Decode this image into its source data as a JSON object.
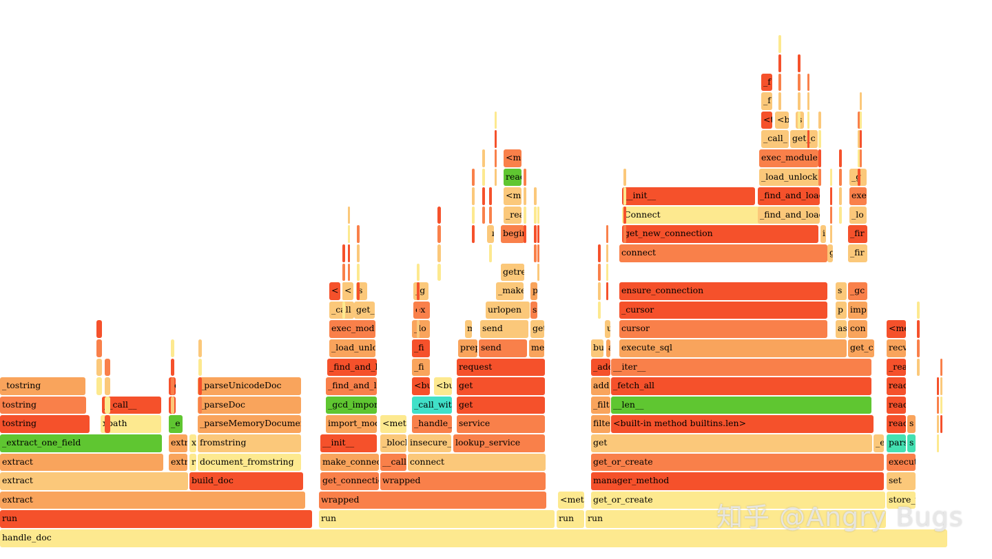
{
  "colors": {
    "r": "#f5512b",
    "o": "#f9804a",
    "p": "#f9a45c",
    "l": "#fbc87a",
    "y": "#fde98f",
    "g": "#5fc631",
    "t": "#44e0b2",
    "c": "#40e0c8"
  },
  "watermark": "知乎 @Angry Bugs",
  "frames": [
    [
      "handle_doc",
      "y",
      0,
      1375,
      0
    ],
    [
      "run",
      "r",
      0,
      453,
      1
    ],
    [
      "run",
      "y",
      463,
      342,
      1
    ],
    [
      "run",
      "y",
      808,
      40,
      1
    ],
    [
      "run",
      "y",
      850,
      436,
      1
    ],
    [
      "extract",
      "p",
      0,
      443,
      2
    ],
    [
      "wrapped",
      "o",
      463,
      330,
      2
    ],
    [
      "<meth",
      "y",
      810,
      38,
      2
    ],
    [
      "get_or_create",
      "y",
      858,
      427,
      2
    ],
    [
      "store_ve",
      "y",
      1287,
      42,
      2
    ],
    [
      "extract",
      "l",
      0,
      273,
      3
    ],
    [
      "build_doc",
      "r",
      275,
      165,
      3
    ],
    [
      "get_connectio",
      "o",
      465,
      85,
      3
    ],
    [
      "wrapped",
      "o",
      552,
      240,
      3
    ],
    [
      "manager_method",
      "r",
      858,
      425,
      3
    ],
    [
      "set",
      "l",
      1287,
      42,
      3
    ],
    [
      "extract",
      "p",
      0,
      237,
      4
    ],
    [
      "extr",
      "p",
      245,
      27,
      4
    ],
    [
      "r",
      "y",
      275,
      10,
      4
    ],
    [
      "document_fromstring",
      "y",
      287,
      150,
      4
    ],
    [
      "make_connect",
      "p",
      465,
      85,
      4
    ],
    [
      "__call",
      "o",
      552,
      38,
      4
    ],
    [
      "connect",
      "l",
      592,
      200,
      4
    ],
    [
      "get_or_create",
      "o",
      858,
      425,
      4
    ],
    [
      "executi",
      "o",
      1287,
      42,
      4
    ],
    [
      "_extract_one_field",
      "g",
      0,
      235,
      5
    ],
    [
      "extr",
      "p",
      245,
      27,
      5
    ],
    [
      "x",
      "y",
      275,
      10,
      5
    ],
    [
      "fromstring",
      "l",
      287,
      150,
      5
    ],
    [
      "__init__",
      "r",
      465,
      82,
      5
    ],
    [
      "_block",
      "l",
      552,
      38,
      5
    ],
    [
      "insecure_cl",
      "l",
      592,
      63,
      5
    ],
    [
      "lookup_service",
      "o",
      658,
      133,
      5
    ],
    [
      "get",
      "l",
      858,
      408,
      5
    ],
    [
      "_e",
      "l",
      1268,
      15,
      5
    ],
    [
      "parse",
      "t",
      1287,
      28,
      5
    ],
    [
      "s",
      "t",
      1317,
      12,
      5
    ],
    [
      "tostring",
      "r",
      0,
      130,
      6
    ],
    [
      "xpath",
      "y",
      146,
      88,
      6
    ],
    [
      "_e",
      "g",
      245,
      20,
      6
    ],
    [
      "_parseMemoryDocument",
      "p",
      287,
      150,
      6
    ],
    [
      "import_mod",
      "p",
      473,
      74,
      6
    ],
    [
      "<meth",
      "y",
      552,
      38,
      6
    ],
    [
      "_handle_f",
      "o",
      598,
      58,
      6
    ],
    [
      "service",
      "o",
      663,
      128,
      6
    ],
    [
      "filte",
      "p",
      858,
      28,
      6
    ],
    [
      "<built-in method builtins.len>",
      "r",
      887,
      381,
      6
    ],
    [
      "read",
      "r",
      1287,
      28,
      6
    ],
    [
      "s",
      "p",
      1317,
      12,
      6
    ],
    [
      "tostring",
      "o",
      0,
      125,
      7
    ],
    [
      "__call__",
      "r",
      148,
      86,
      7
    ],
    [
      "t",
      "r",
      245,
      10,
      7
    ],
    [
      "_parseDoc",
      "p",
      287,
      150,
      7
    ],
    [
      "_gcd_import",
      "g",
      473,
      74,
      7
    ],
    [
      "_call_with",
      "c",
      598,
      58,
      7
    ],
    [
      "get",
      "r",
      663,
      128,
      7
    ],
    [
      "_filt",
      "p",
      858,
      28,
      7
    ],
    [
      "__len__",
      "g",
      887,
      378,
      7
    ],
    [
      "read",
      "r",
      1287,
      28,
      7
    ],
    [
      "_tostring",
      "p",
      0,
      124,
      8
    ],
    [
      "tc",
      "r",
      245,
      10,
      8
    ],
    [
      "_parseUnicodeDoc",
      "p",
      287,
      150,
      8
    ],
    [
      "_find_and_lc",
      "o",
      473,
      74,
      8
    ],
    [
      "<bu",
      "r",
      598,
      26,
      8
    ],
    [
      "<bu",
      "y",
      630,
      26,
      8
    ],
    [
      "get",
      "r",
      663,
      128,
      8
    ],
    [
      "add",
      "p",
      858,
      28,
      8
    ],
    [
      "_fetch_all",
      "r",
      887,
      378,
      8
    ],
    [
      "read",
      "r",
      1287,
      28,
      8
    ],
    [
      "_find_and_l",
      "r",
      475,
      72,
      9
    ],
    [
      "_fi",
      "p",
      598,
      26,
      9
    ],
    [
      "request",
      "r",
      663,
      128,
      9
    ],
    [
      "_add",
      "r",
      858,
      28,
      9
    ],
    [
      "__iter__",
      "o",
      887,
      378,
      9
    ],
    [
      "_rea",
      "r",
      1287,
      28,
      9
    ],
    [
      "_load_unlc",
      "p",
      478,
      67,
      10
    ],
    [
      "_fi",
      "r",
      598,
      26,
      10
    ],
    [
      "prep",
      "p",
      665,
      28,
      10
    ],
    [
      "send",
      "o",
      695,
      70,
      10
    ],
    [
      "me",
      "p",
      768,
      22,
      10
    ],
    [
      "bu",
      "l",
      858,
      18,
      10
    ],
    [
      "a",
      "p",
      880,
      6,
      10
    ],
    [
      "execute_sql",
      "p",
      899,
      330,
      10
    ],
    [
      "get_c",
      "p",
      1231,
      38,
      10
    ],
    [
      "recv",
      "p",
      1287,
      28,
      10
    ],
    [
      "exec_mod",
      "o",
      478,
      67,
      11
    ],
    [
      "_lo",
      "p",
      598,
      26,
      11
    ],
    [
      "m",
      "l",
      675,
      10,
      11
    ],
    [
      "send",
      "l",
      697,
      70,
      11
    ],
    [
      "get",
      "l",
      770,
      20,
      11
    ],
    [
      "u",
      "l",
      878,
      8,
      11
    ],
    [
      "cursor",
      "o",
      899,
      302,
      11
    ],
    [
      "as",
      "l",
      1213,
      16,
      11
    ],
    [
      "con",
      "p",
      1231,
      28,
      11
    ],
    [
      "<me",
      "r",
      1287,
      28,
      11
    ],
    [
      "_call",
      "l",
      478,
      36,
      12
    ],
    [
      "get_",
      "l",
      514,
      30,
      12
    ],
    [
      "ex",
      "o",
      600,
      24,
      12
    ],
    [
      "urlopen",
      "l",
      705,
      64,
      12
    ],
    [
      "s",
      "o",
      770,
      10,
      12
    ],
    [
      "_cursor",
      "r",
      899,
      302,
      12
    ],
    [
      "p",
      "l",
      1213,
      16,
      12
    ],
    [
      "imp",
      "p",
      1231,
      28,
      12
    ],
    [
      "<",
      "r",
      478,
      16,
      13
    ],
    [
      "<",
      "l",
      497,
      16,
      13
    ],
    [
      "s",
      "l",
      517,
      16,
      13
    ],
    [
      "_g",
      "l",
      600,
      22,
      13
    ],
    [
      "_make",
      "l",
      720,
      40,
      13
    ],
    [
      "p",
      "p",
      770,
      10,
      13
    ],
    [
      "ensure_connection",
      "r",
      899,
      302,
      13
    ],
    [
      "s",
      "l",
      1213,
      16,
      13
    ],
    [
      "_gc",
      "o",
      1231,
      28,
      13
    ],
    [
      "begin",
      "p",
      727,
      34,
      14
    ],
    [
      "getres",
      "l",
      727,
      34,
      14
    ],
    [
      "connect",
      "o",
      899,
      302,
      15
    ],
    [
      "g",
      "l",
      1201,
      8,
      15
    ],
    [
      "_fir",
      "l",
      1231,
      28,
      15
    ],
    [
      "begin",
      "o",
      727,
      34,
      16
    ],
    [
      "u",
      "l",
      707,
      10,
      16
    ],
    [
      "get_new_connection",
      "r",
      903,
      285,
      16
    ],
    [
      "i",
      "l",
      1191,
      8,
      16
    ],
    [
      "_fir",
      "r",
      1231,
      28,
      16
    ],
    [
      "_rea",
      "l",
      731,
      26,
      17
    ],
    [
      "Connect",
      "y",
      903,
      285,
      17
    ],
    [
      "_find_and_load",
      "l",
      1100,
      90,
      17
    ],
    [
      "_lo",
      "l",
      1233,
      25,
      17
    ],
    [
      "<mo",
      "l",
      731,
      26,
      18
    ],
    [
      "__init__",
      "r",
      903,
      193,
      18
    ],
    [
      "_find_and_load",
      "r",
      1100,
      90,
      18
    ],
    [
      "exe",
      "o",
      1233,
      25,
      18
    ],
    [
      "read",
      "g",
      731,
      26,
      19
    ],
    [
      "_load_unlock",
      "l",
      1102,
      88,
      19
    ],
    [
      "_g",
      "l",
      1233,
      25,
      19
    ],
    [
      "<mo",
      "o",
      731,
      26,
      20
    ],
    [
      "exec_module",
      "o",
      1102,
      86,
      20
    ],
    [
      "_call_",
      "l",
      1105,
      40,
      21
    ],
    [
      "get_c",
      "l",
      1147,
      40,
      21
    ],
    [
      "<t",
      "r",
      1105,
      16,
      22
    ],
    [
      "<b",
      "l",
      1125,
      20,
      22
    ],
    [
      "s",
      "l",
      1155,
      12,
      22
    ],
    [
      "_f",
      "l",
      1105,
      16,
      23
    ],
    [
      "_f",
      "r",
      1105,
      16,
      24
    ]
  ]
}
